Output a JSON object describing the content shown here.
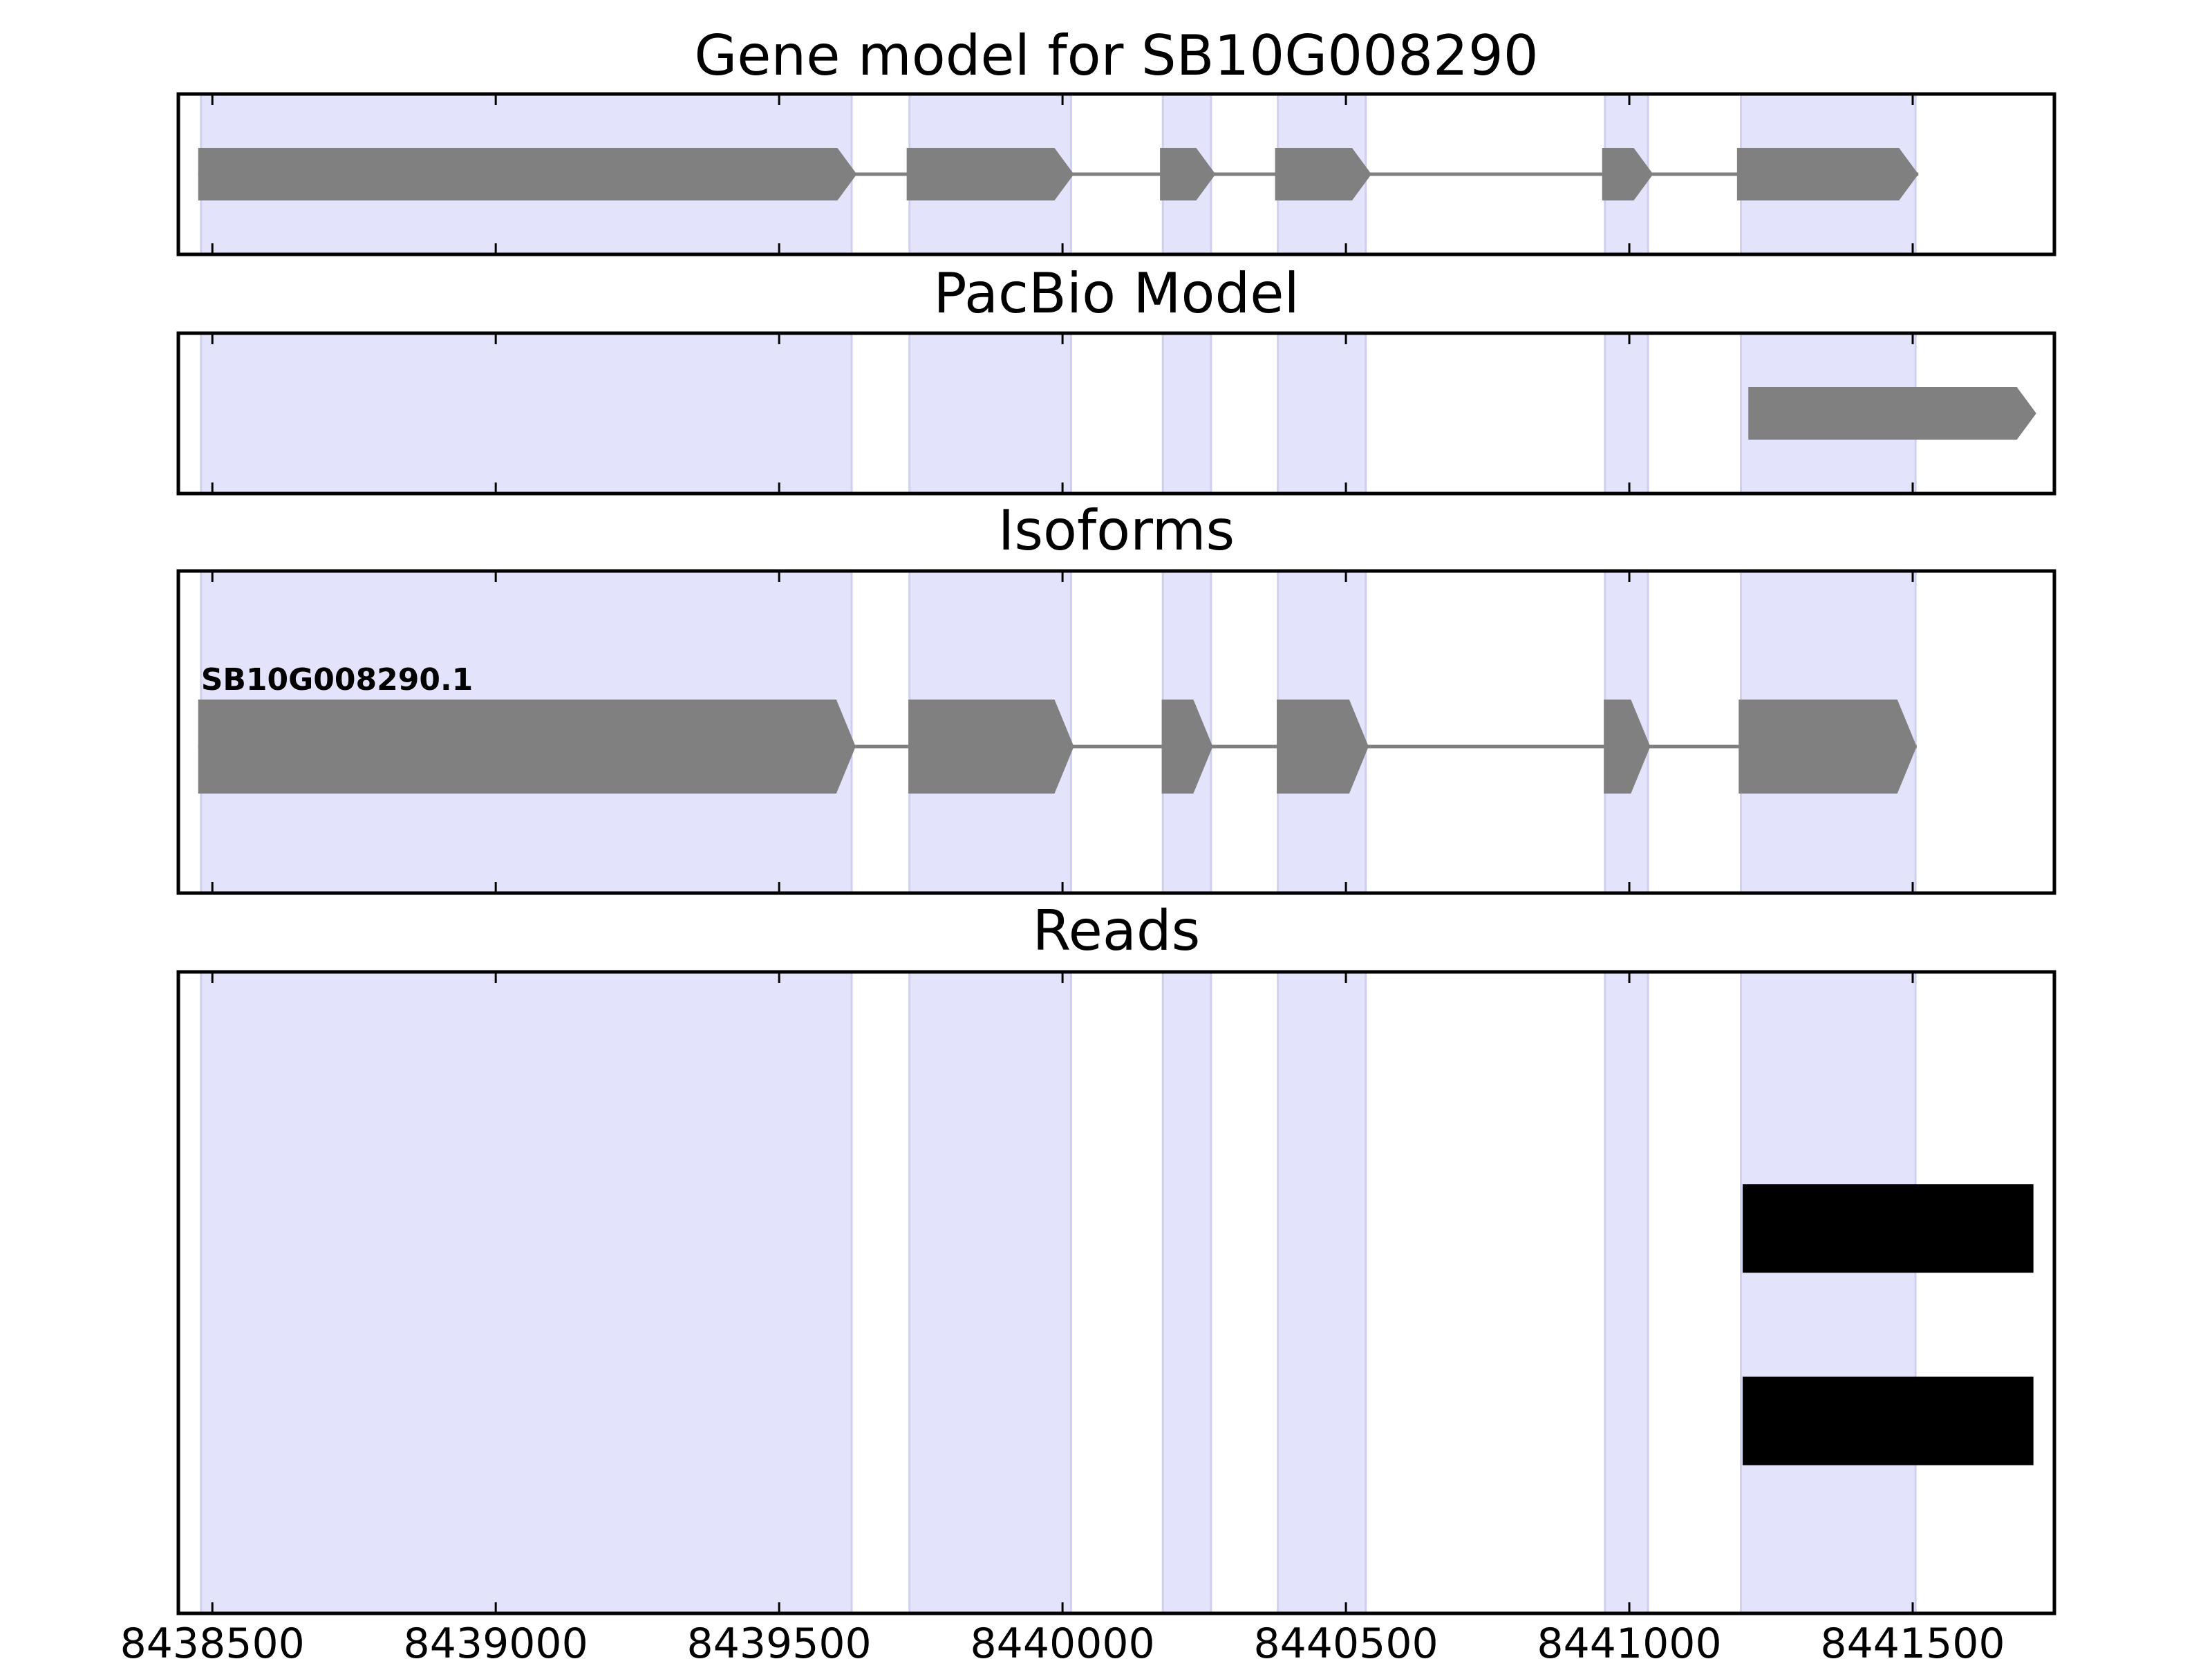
{
  "chart_data": {
    "type": "gene-track",
    "x_range": [
      8438440,
      8441750
    ],
    "x_ticks": [
      8438500,
      8439000,
      8439500,
      8440000,
      8440500,
      8441000,
      8441500
    ],
    "x_tick_labels": [
      "8438500",
      "8439000",
      "8439500",
      "8440000",
      "8440500",
      "8441000",
      "8441500"
    ],
    "exon_shading_color": "#e3e3fb",
    "shaded_exons": [
      [
        8438480,
        8439628
      ],
      [
        8439730,
        8440015
      ],
      [
        8440177,
        8440262
      ],
      [
        8440380,
        8440535
      ],
      [
        8440957,
        8441033
      ],
      [
        8441197,
        8441505
      ]
    ],
    "panels": [
      {
        "key": "gene_model",
        "title": "Gene model for SB10G008290",
        "features": [
          {
            "type": "gene",
            "strand": "+",
            "color": "#808080",
            "exons": [
              [
                8438475,
                8439637
              ],
              [
                8439725,
                8440020
              ],
              [
                8440172,
                8440270
              ],
              [
                8440375,
                8440545
              ],
              [
                8440952,
                8441042
              ],
              [
                8441190,
                8441510
              ]
            ]
          }
        ]
      },
      {
        "key": "pacbio_model",
        "title": "PacBio Model",
        "features": [
          {
            "type": "gene",
            "strand": "+",
            "color": "#808080",
            "exons": [
              [
                8441210,
                8441718
              ]
            ]
          }
        ]
      },
      {
        "key": "isoforms",
        "title": "Isoforms",
        "features": [
          {
            "type": "gene",
            "strand": "+",
            "color": "#808080",
            "label": "SB10G008290.1",
            "exons": [
              [
                8438475,
                8439635
              ],
              [
                8439728,
                8440020
              ],
              [
                8440175,
                8440265
              ],
              [
                8440378,
                8440540
              ],
              [
                8440955,
                8441037
              ],
              [
                8441193,
                8441507
              ]
            ]
          }
        ]
      },
      {
        "key": "reads",
        "title": "Reads",
        "features": [
          {
            "type": "read",
            "color": "#000000",
            "row": 0.6,
            "exons": [
              [
                8441200,
                8441713
              ]
            ]
          },
          {
            "type": "read",
            "color": "#000000",
            "row": 0.3,
            "exons": [
              [
                8441200,
                8441713
              ]
            ]
          }
        ]
      }
    ]
  }
}
